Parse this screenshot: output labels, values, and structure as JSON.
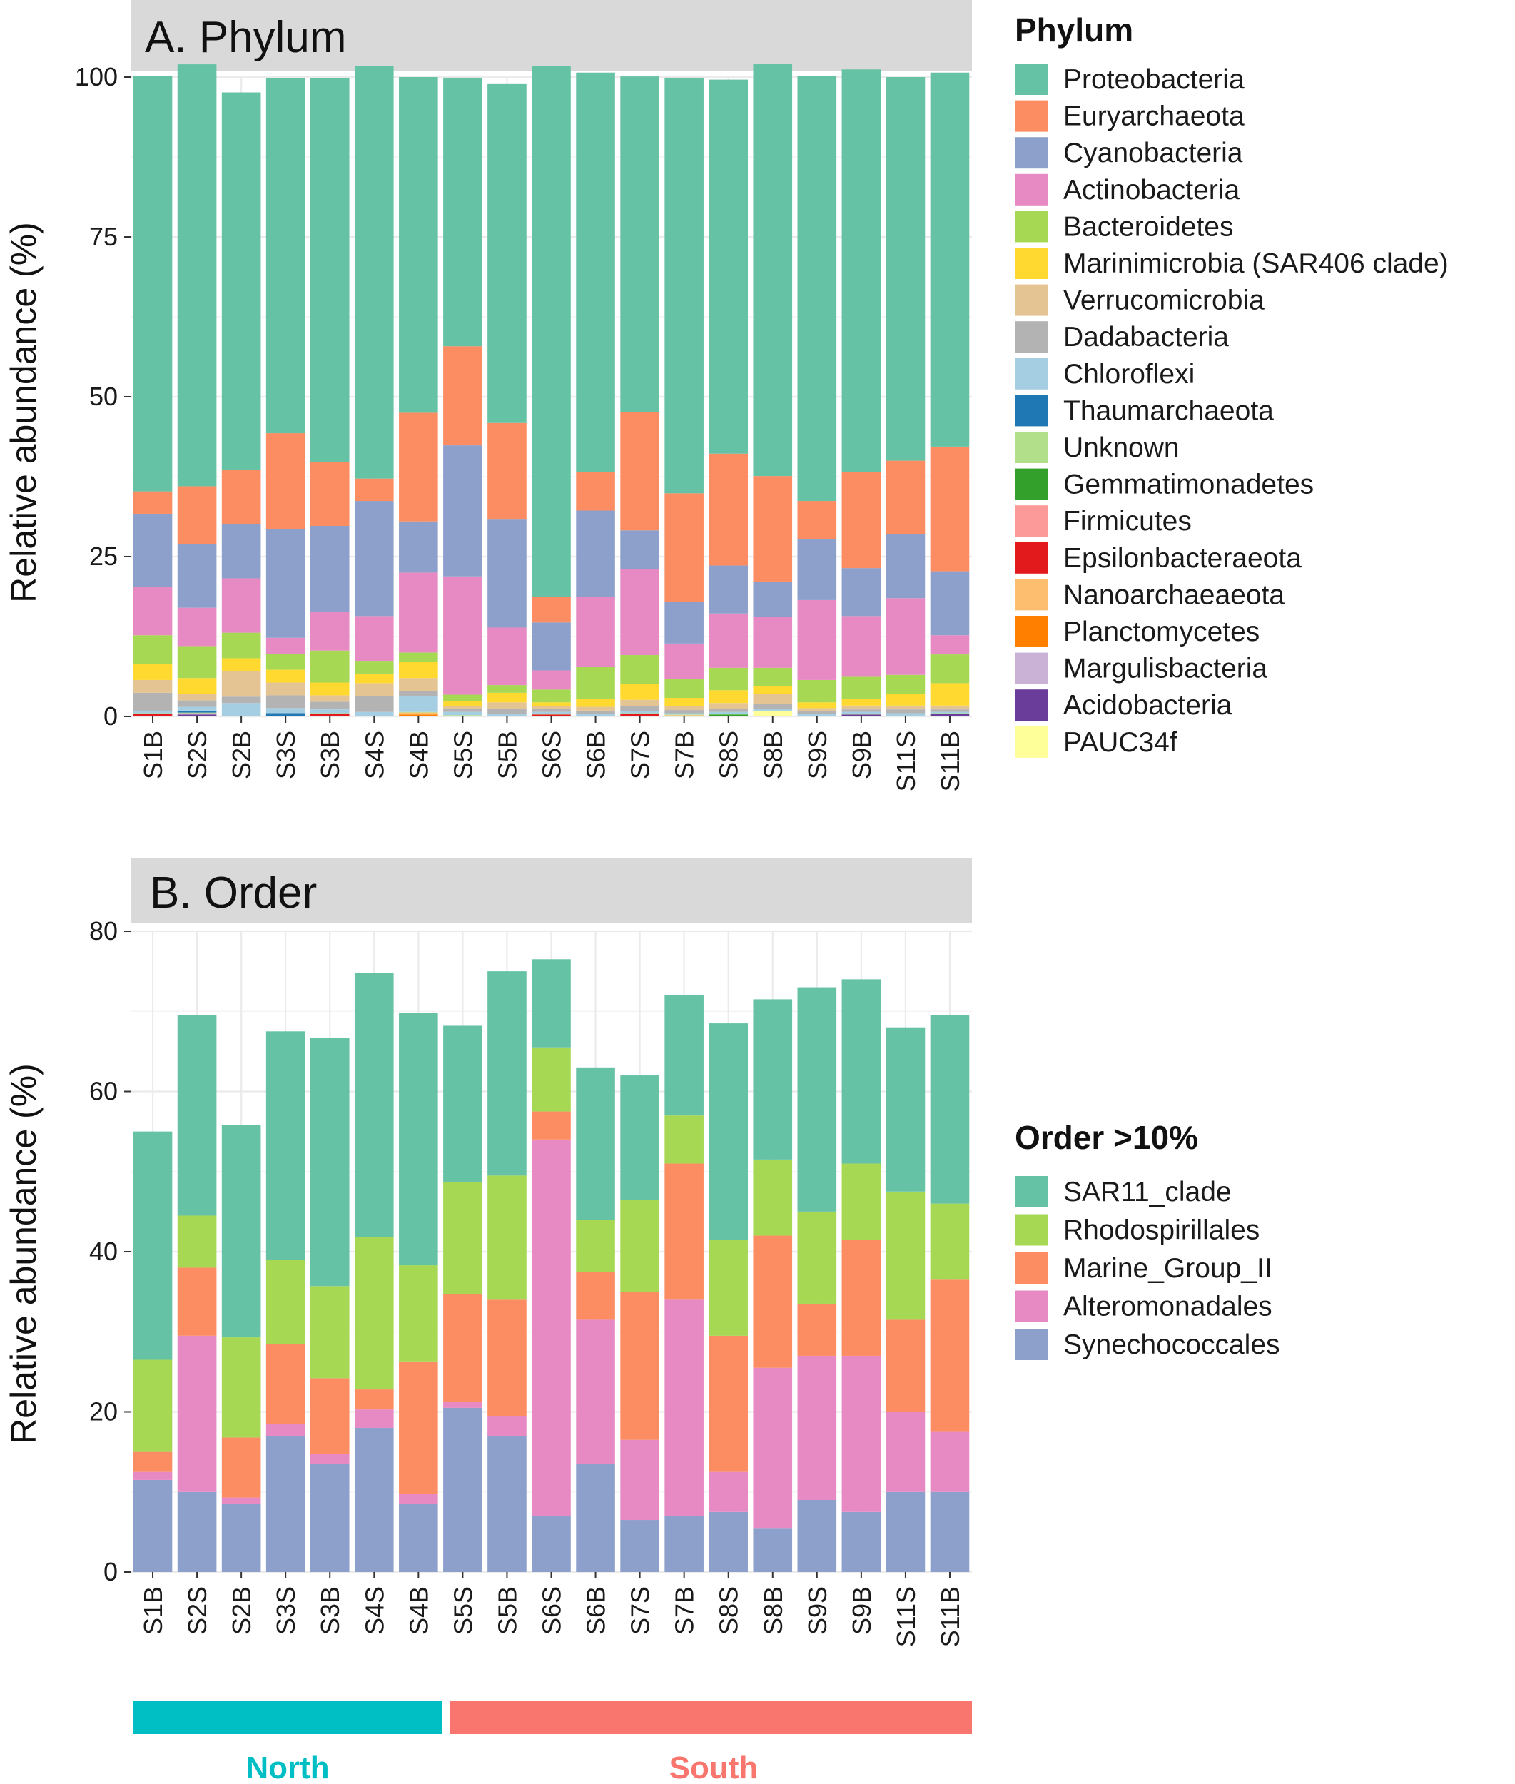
{
  "chart_data": [
    {
      "type": "bar",
      "stacked": true,
      "title": "A. Phylum",
      "ylabel": "Relative abundance (%)",
      "xlabel": "",
      "ylim": [
        0,
        100
      ],
      "yticks": [
        "0",
        "25",
        "50",
        "75",
        "100"
      ],
      "categories": [
        "S1B",
        "S2S",
        "S2B",
        "S3S",
        "S3B",
        "S4S",
        "S4B",
        "S5S",
        "S5B",
        "S6S",
        "S6B",
        "S7S",
        "S7B",
        "S8S",
        "S8B",
        "S9S",
        "S9B",
        "S11S",
        "S11B"
      ],
      "legend_title": "Phylum",
      "legend_position": "right",
      "series": [
        {
          "name": "Proteobacteria",
          "color": "#66C2A5",
          "values": [
            65,
            66,
            59,
            55.5,
            60,
            64.5,
            52.5,
            42,
            53,
            83,
            62.5,
            52.5,
            65,
            58.5,
            64.5,
            66.5,
            63,
            60,
            58.5
          ]
        },
        {
          "name": "Euryarchaeota",
          "color": "#FC8D62",
          "values": [
            3.5,
            9,
            8.5,
            15,
            10,
            3.5,
            17,
            15.5,
            15,
            4,
            6,
            18.5,
            17,
            17.5,
            16.5,
            6,
            15,
            11.5,
            19.5
          ]
        },
        {
          "name": "Cyanobacteria",
          "color": "#8DA0CB",
          "values": [
            11.5,
            10,
            8.5,
            17,
            13.5,
            18,
            8,
            20.5,
            17,
            7.5,
            13.5,
            6,
            6.5,
            7.5,
            5.5,
            9.5,
            7.5,
            10,
            10
          ]
        },
        {
          "name": "Actinobacteria",
          "color": "#E78AC3",
          "values": [
            7.5,
            6,
            8.5,
            2.5,
            6,
            7,
            12.5,
            18.5,
            9,
            3,
            11,
            13.5,
            5.5,
            8.5,
            8,
            12.5,
            9.5,
            12,
            3
          ]
        },
        {
          "name": "Bacteroidetes",
          "color": "#A6D854",
          "values": [
            4.5,
            5,
            4,
            2.5,
            5,
            2,
            1.5,
            1,
            1.2,
            2,
            5,
            4.5,
            3,
            3.5,
            2.8,
            3.5,
            3.5,
            3,
            4.5
          ]
        },
        {
          "name": "Marinimicrobia (SAR406 clade)",
          "color": "#FFD92F",
          "values": [
            2.5,
            2.5,
            2,
            2,
            2,
            1.5,
            2.5,
            0.8,
            1.5,
            0.6,
            1.2,
            2.5,
            1.3,
            2,
            1.3,
            0.9,
            1,
            1.8,
            3.5
          ]
        },
        {
          "name": "Verrucomicrobia",
          "color": "#E5C494",
          "values": [
            2,
            1,
            4,
            2,
            1,
            2,
            2,
            0.4,
            1,
            0.4,
            0.6,
            1,
            0.6,
            0.9,
            1.5,
            0.5,
            0.6,
            0.6,
            0.6
          ]
        },
        {
          "name": "Dadabacteria",
          "color": "#B3B3B3",
          "values": [
            2.8,
            1,
            1,
            2,
            1.2,
            2.5,
            0.8,
            0.5,
            0.8,
            0.5,
            0.5,
            0.8,
            0.5,
            0.5,
            0.8,
            0.4,
            0.4,
            0.6,
            0.4
          ]
        },
        {
          "name": "Chloroflexi",
          "color": "#A6CEE3",
          "values": [
            0.4,
            0.6,
            2,
            0.8,
            0.6,
            0.6,
            2.5,
            0.5,
            0.3,
            0.3,
            0.3,
            0.3,
            0.2,
            0.3,
            0.3,
            0.3,
            0.3,
            0.4,
            0.2
          ]
        },
        {
          "name": "Thaumarchaeota",
          "color": "#1F78B4",
          "values": [
            0,
            0.3,
            0,
            0.4,
            0,
            0,
            0,
            0,
            0,
            0,
            0,
            0,
            0,
            0,
            0,
            0,
            0,
            0,
            0
          ]
        },
        {
          "name": "Unknown",
          "color": "#B2DF8A",
          "values": [
            0.1,
            0.1,
            0.1,
            0.1,
            0.1,
            0.1,
            0.1,
            0.2,
            0.1,
            0.1,
            0.1,
            0.1,
            0.1,
            0.1,
            0.1,
            0.1,
            0.1,
            0.1,
            0.1
          ]
        },
        {
          "name": "Gemmatimonadetes",
          "color": "#33A02C",
          "values": [
            0,
            0,
            0,
            0,
            0,
            0,
            0,
            0,
            0,
            0,
            0,
            0,
            0,
            0.3,
            0,
            0,
            0,
            0,
            0
          ]
        },
        {
          "name": "Firmicutes",
          "color": "#FB9A99",
          "values": [
            0,
            0,
            0,
            0,
            0,
            0,
            0,
            0,
            0,
            0,
            0,
            0,
            0,
            0,
            0,
            0,
            0,
            0,
            0
          ]
        },
        {
          "name": "Epsilonbacteraeota",
          "color": "#E31A1C",
          "values": [
            0.4,
            0,
            0,
            0,
            0.4,
            0,
            0,
            0,
            0,
            0.3,
            0,
            0.4,
            0,
            0,
            0,
            0,
            0,
            0,
            0
          ]
        },
        {
          "name": "Nanoarchaeaeota",
          "color": "#FDBF6F",
          "values": [
            0,
            0,
            0,
            0,
            0,
            0,
            0.3,
            0,
            0,
            0,
            0,
            0,
            0.2,
            0,
            0,
            0,
            0,
            0,
            0
          ]
        },
        {
          "name": "Planctomycetes",
          "color": "#FF7F00",
          "values": [
            0,
            0,
            0,
            0,
            0,
            0,
            0.3,
            0,
            0,
            0,
            0,
            0,
            0,
            0,
            0,
            0,
            0,
            0,
            0
          ]
        },
        {
          "name": "Margulisbacteria",
          "color": "#CAB2D6",
          "values": [
            0,
            0.2,
            0,
            0,
            0,
            0,
            0,
            0,
            0,
            0,
            0,
            0,
            0,
            0,
            0,
            0,
            0,
            0,
            0
          ]
        },
        {
          "name": "Acidobacteria",
          "color": "#6A3D9A",
          "values": [
            0,
            0.3,
            0,
            0,
            0,
            0,
            0,
            0,
            0,
            0,
            0,
            0,
            0,
            0,
            0,
            0,
            0.3,
            0,
            0.4
          ]
        },
        {
          "name": "PAUC34f",
          "color": "#FFFF99",
          "values": [
            0,
            0,
            0,
            0,
            0,
            0,
            0,
            0,
            0,
            0,
            0,
            0,
            0,
            0,
            0.8,
            0,
            0,
            0,
            0
          ]
        }
      ]
    },
    {
      "type": "bar",
      "stacked": true,
      "title": "B. Order",
      "ylabel": "Relative abundance (%)",
      "xlabel": "",
      "ylim": [
        0,
        80
      ],
      "yticks": [
        "0",
        "20",
        "40",
        "60",
        "80"
      ],
      "categories": [
        "S1B",
        "S2S",
        "S2B",
        "S3S",
        "S3B",
        "S4S",
        "S4B",
        "S5S",
        "S5B",
        "S6S",
        "S6B",
        "S7S",
        "S7B",
        "S8S",
        "S8B",
        "S9S",
        "S9B",
        "S11S",
        "S11B"
      ],
      "legend_title": "Order >10%",
      "legend_position": "right",
      "series": [
        {
          "name": "SAR11_clade",
          "color": "#66C2A5",
          "values": [
            28.5,
            25,
            26.5,
            28.5,
            31,
            33,
            31.5,
            19.5,
            25.5,
            11,
            19,
            15.5,
            15,
            27,
            20,
            28,
            23,
            20.5,
            23.5
          ]
        },
        {
          "name": "Rhodospirillales",
          "color": "#A6D854",
          "values": [
            11.5,
            6.5,
            12.5,
            10.5,
            11.5,
            19,
            12,
            14,
            15.5,
            8,
            6.5,
            11.5,
            6,
            12,
            9.5,
            11.5,
            9.5,
            16,
            9.5
          ]
        },
        {
          "name": "Marine_Group_II",
          "color": "#FC8D62",
          "values": [
            2.5,
            8.5,
            7.5,
            10,
            9.5,
            2.5,
            16.5,
            13.5,
            14.5,
            3.5,
            6,
            18.5,
            17,
            17,
            16.5,
            6.5,
            14.5,
            11.5,
            19
          ]
        },
        {
          "name": "Alteromonadales",
          "color": "#E78AC3",
          "values": [
            1,
            19.5,
            0.8,
            1.5,
            1.2,
            2.3,
            1.3,
            0.7,
            2.5,
            47,
            18,
            10,
            27,
            5,
            20,
            18,
            19.5,
            10,
            7.5
          ]
        },
        {
          "name": "Synechococcales",
          "color": "#8DA0CB",
          "values": [
            11.5,
            10,
            8.5,
            17,
            13.5,
            18,
            8.5,
            20.5,
            17,
            7,
            13.5,
            6.5,
            7,
            7.5,
            5.5,
            9,
            7.5,
            10,
            10
          ]
        }
      ]
    }
  ],
  "regions": [
    {
      "label": "North",
      "color": "#00BFC4"
    },
    {
      "label": "South",
      "color": "#F8766D"
    }
  ]
}
